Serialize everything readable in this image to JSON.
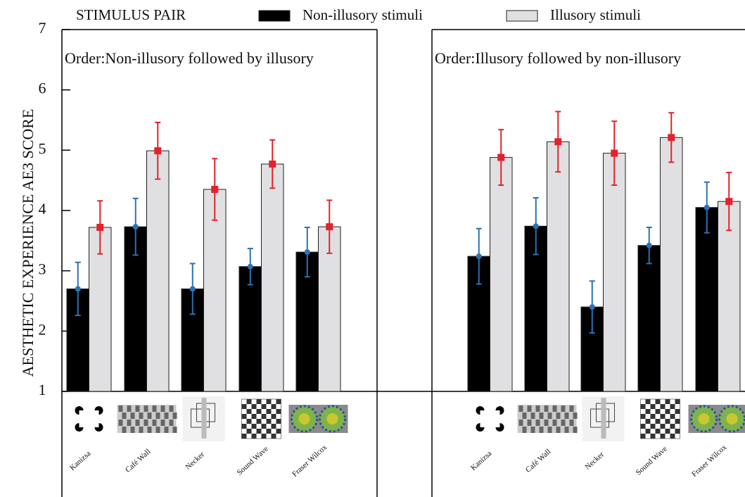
{
  "chart_data": [
    {
      "type": "bar",
      "subtitle": "Order:Non-illusory followed by illusory",
      "ylabel": "AESTHETIC EXPERIENCE AE3 SCORE",
      "legend_title": "STIMULUS PAIR",
      "categories": [
        "Kanizsa",
        "Café Wall",
        "Necker",
        "Sound Wave",
        "Fraser Wilcox"
      ],
      "series": [
        {
          "name": "Non-illusory stimuli",
          "color": "#000000",
          "marker_color": "#2a72b5",
          "values": [
            2.7,
            3.73,
            2.7,
            3.07,
            3.31
          ],
          "errors": [
            0.44,
            0.47,
            0.42,
            0.3,
            0.41
          ]
        },
        {
          "name": "Illusory stimuli",
          "color": "#e0e0e2",
          "marker_color": "#e3222b",
          "values": [
            3.72,
            4.99,
            4.35,
            4.77,
            3.73
          ],
          "errors": [
            0.44,
            0.47,
            0.51,
            0.4,
            0.44
          ]
        }
      ],
      "ylim": [
        1,
        7
      ],
      "yticks": [
        1,
        2,
        3,
        4,
        5,
        6,
        7
      ]
    },
    {
      "type": "bar",
      "subtitle": "Order:Illusory followed by non-illusory",
      "categories": [
        "Kanizsa",
        "Café Wall",
        "Necker",
        "Sound Wave",
        "Fraser Wilcox"
      ],
      "series": [
        {
          "color": "#000000",
          "marker_color": "#2a72b5",
          "values": [
            3.24,
            3.74,
            2.4,
            3.42,
            4.05
          ],
          "errors": [
            0.46,
            0.47,
            0.43,
            0.3,
            0.42
          ]
        },
        {
          "color": "#e0e0e2",
          "marker_color": "#e3222b",
          "values": [
            4.88,
            5.14,
            4.95,
            5.21,
            4.15
          ],
          "errors": [
            0.46,
            0.5,
            0.53,
            0.41,
            0.48
          ]
        }
      ],
      "ylim": [
        1,
        7
      ]
    }
  ]
}
